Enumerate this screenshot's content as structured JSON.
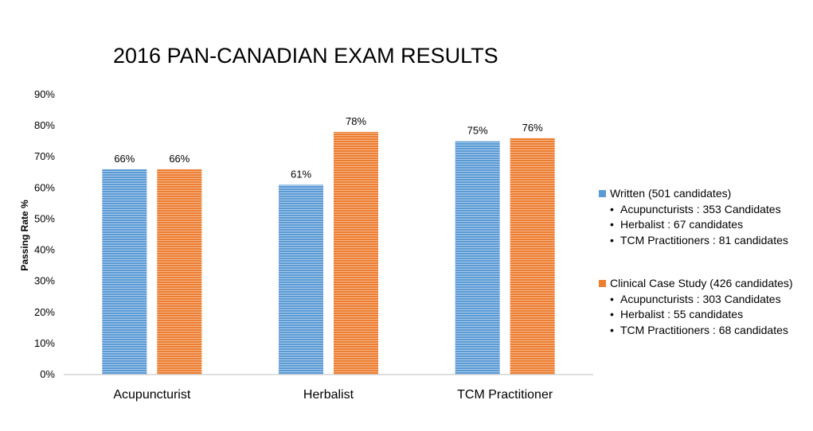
{
  "chart_data": {
    "type": "bar",
    "title": "2016 PAN-CANADIAN EXAM RESULTS",
    "ylabel": "Passing Rate %",
    "xlabel": "",
    "categories": [
      "Acupuncturist",
      "Herbalist",
      "TCM Practitioner"
    ],
    "ylim": [
      0,
      90
    ],
    "yticks": [
      0,
      10,
      20,
      30,
      40,
      50,
      60,
      70,
      80,
      90
    ],
    "ytick_labels": [
      "0%",
      "10%",
      "20%",
      "30%",
      "40%",
      "50%",
      "60%",
      "70%",
      "80%",
      "90%"
    ],
    "grid": false,
    "legend_position": "right",
    "series": [
      {
        "name": "Written (501 candidates)",
        "color": "#5B9BD5",
        "values": [
          66,
          61,
          75
        ],
        "value_labels": [
          "66%",
          "61%",
          "75%"
        ],
        "details": [
          "Acupuncturists : 353 Candidates",
          "Herbalist : 67 candidates",
          "TCM Practitioners : 81 candidates"
        ]
      },
      {
        "name": "Clinical Case Study (426 candidates)",
        "color": "#ED7D31",
        "values": [
          66,
          78,
          76
        ],
        "value_labels": [
          "66%",
          "78%",
          "76%"
        ],
        "details": [
          "Acupuncturists : 303 Candidates",
          "Herbalist : 55 candidates",
          "TCM Practitioners : 68 candidates"
        ]
      }
    ]
  }
}
